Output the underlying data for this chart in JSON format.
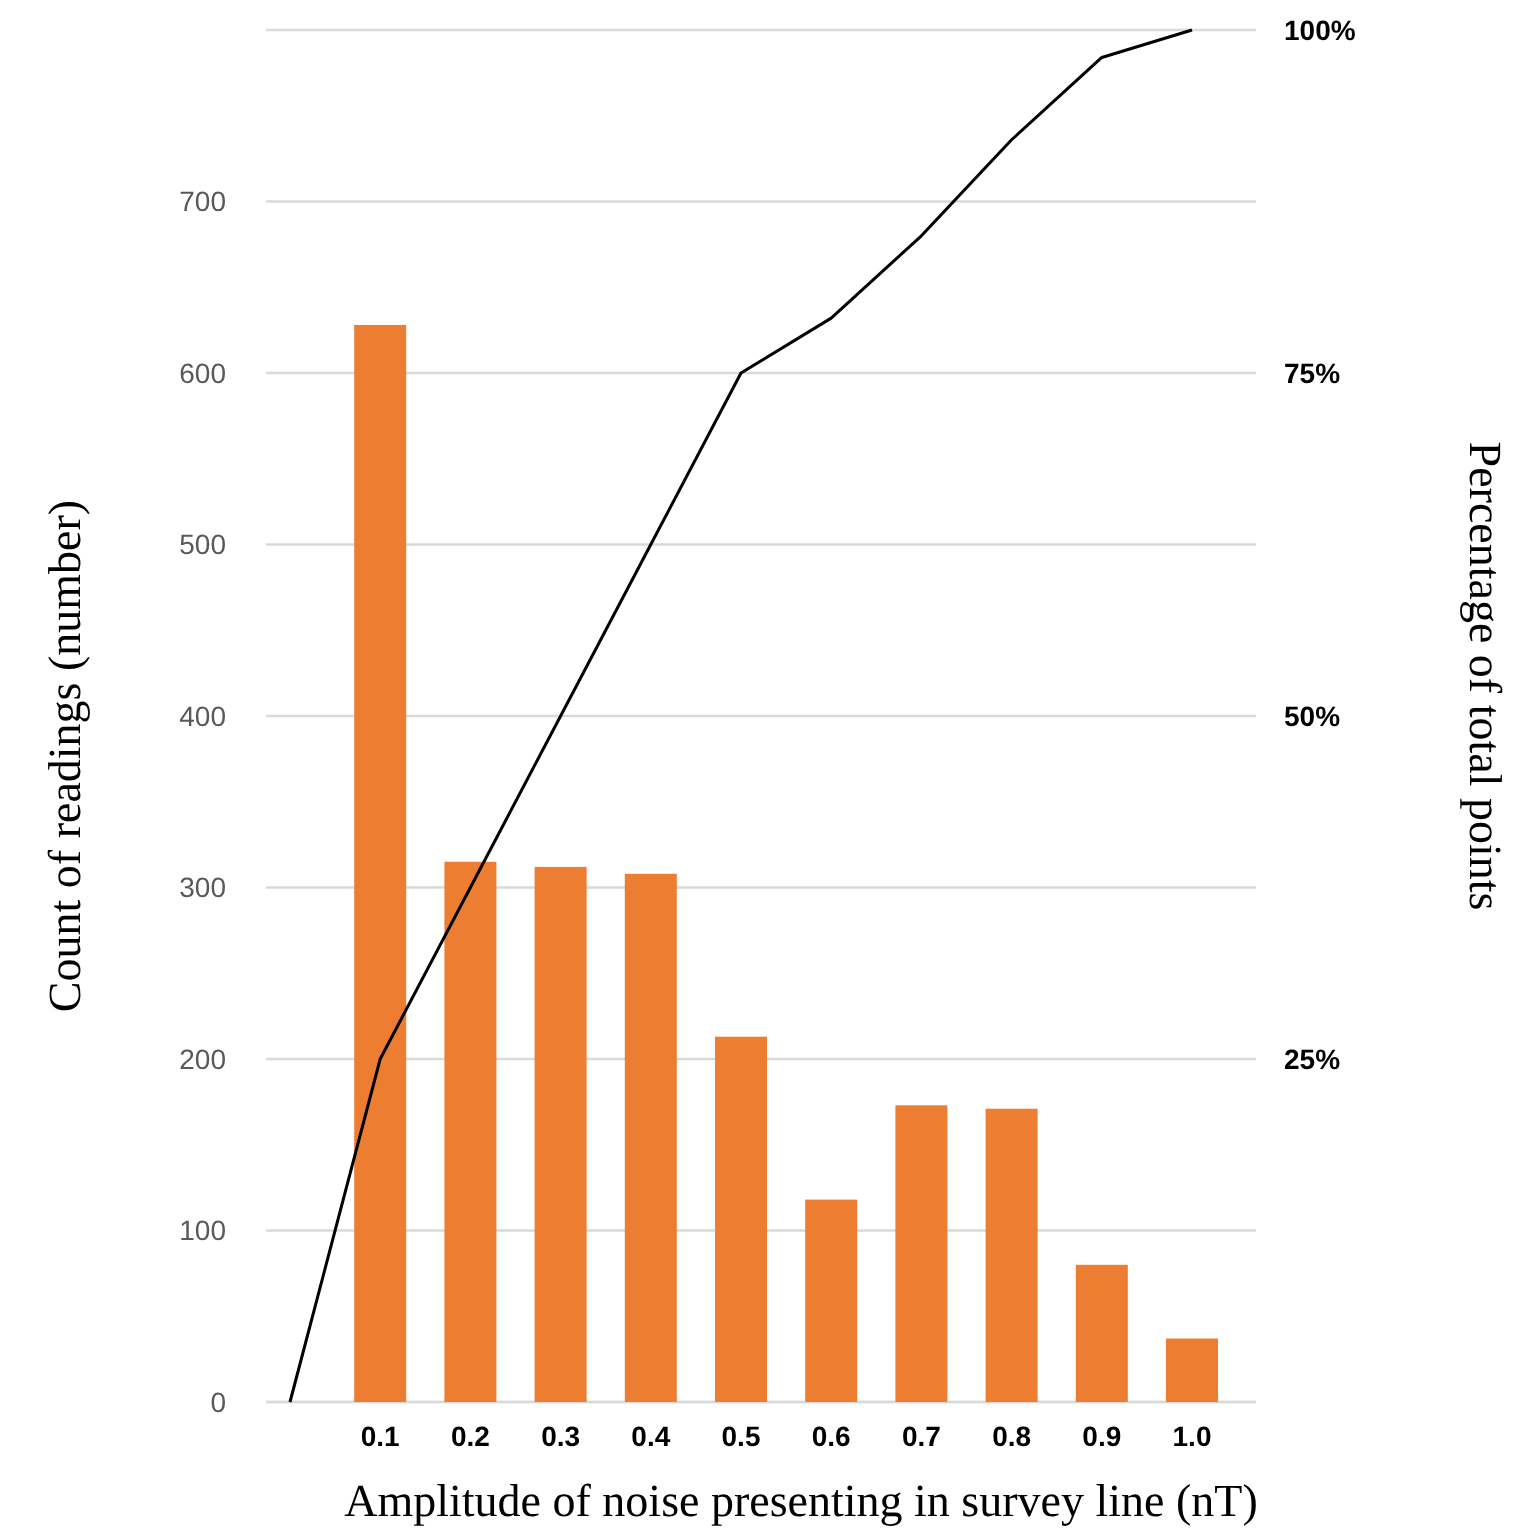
{
  "chart_data": {
    "type": "bar",
    "xlabel": "Amplitude of noise presenting in survey line (nT)",
    "ylabel": "Count of readings (number)",
    "y2label": "Percentage of total points",
    "categories": [
      null,
      "0.1",
      "0.2",
      "0.3",
      "0.4",
      "0.5",
      "0.6",
      "0.7",
      "0.8",
      "0.9",
      "1.0"
    ],
    "series": [
      {
        "color": "#ed7d31",
        "values": [
          null,
          628,
          315,
          312,
          308,
          213,
          118,
          173,
          171,
          80,
          37
        ]
      },
      {
        "type": "line",
        "axis": "y2",
        "color": "#000000",
        "values": [
          0,
          25,
          37.5,
          50,
          62.5,
          75,
          79,
          85,
          92,
          98,
          100
        ]
      }
    ],
    "ylim": [
      0,
      800
    ],
    "yticks": [
      0,
      100,
      200,
      300,
      400,
      500,
      600,
      700,
      {
        "value": 800,
        "label": null
      }
    ],
    "y2lim": [
      0,
      100
    ],
    "y2ticks": [
      {
        "value": 25,
        "label": "25%"
      },
      {
        "value": 50,
        "label": "50%"
      },
      {
        "value": 75,
        "label": "75%"
      },
      {
        "value": 100,
        "label": "100%"
      }
    ],
    "grid": "y",
    "legend": false,
    "marker": "none",
    "line_style": "solid"
  }
}
